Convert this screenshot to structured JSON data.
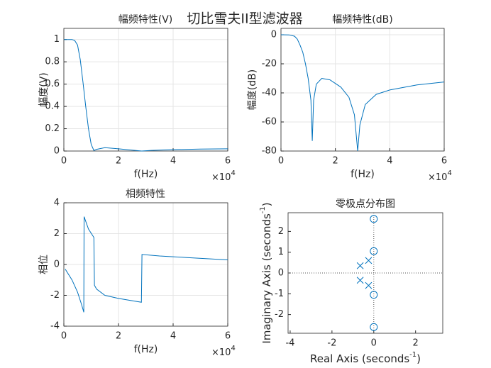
{
  "suptitle": "切比雪夫II型滤波器",
  "chart_data": [
    {
      "type": "line",
      "title": "幅频特性(V)",
      "xlabel": "f(Hz)",
      "ylabel": "幅度(V)",
      "x_multiplier": "×10",
      "x_multiplier_power": "4",
      "color": "#0072bd",
      "grid": true,
      "xlim": [
        0,
        6
      ],
      "xticks": [
        0,
        2,
        4,
        6
      ],
      "ylim": [
        0,
        1.1
      ],
      "yticks": [
        0,
        0.2,
        0.4,
        0.6,
        0.8,
        1
      ],
      "x": [
        0,
        0.3,
        0.4,
        0.5,
        0.6,
        0.7,
        0.8,
        0.9,
        1.0,
        1.1,
        1.2,
        1.5,
        2.0,
        2.5,
        2.85,
        3.2,
        4,
        5,
        6
      ],
      "values": [
        1,
        1,
        0.99,
        0.95,
        0.82,
        0.62,
        0.4,
        0.2,
        0.06,
        0.005,
        0.015,
        0.03,
        0.02,
        0.008,
        0,
        0.006,
        0.013,
        0.017,
        0.02
      ]
    },
    {
      "type": "line",
      "title": "幅频特性(dB)",
      "xlabel": "f(Hz)",
      "ylabel": "幅度(dB)",
      "x_multiplier": "×10",
      "x_multiplier_power": "4",
      "color": "#0072bd",
      "grid": true,
      "xlim": [
        0,
        6
      ],
      "xticks": [
        0,
        2,
        4,
        6
      ],
      "ylim": [
        -80,
        4.4
      ],
      "yticks": [
        -80,
        -60,
        -40,
        -20,
        0
      ],
      "x": [
        0,
        0.3,
        0.5,
        0.6,
        0.7,
        0.8,
        0.9,
        1.0,
        1.1,
        1.15,
        1.2,
        1.3,
        1.5,
        1.8,
        2.2,
        2.5,
        2.7,
        2.82,
        2.9,
        3.1,
        3.5,
        4,
        5,
        6
      ],
      "values": [
        0,
        -0.1,
        -1,
        -3,
        -7,
        -12,
        -20,
        -30,
        -45,
        -73,
        -45,
        -34,
        -30,
        -31,
        -36,
        -43,
        -55,
        -80,
        -62,
        -48,
        -41,
        -38,
        -34.5,
        -32.5
      ]
    },
    {
      "type": "line",
      "title": "相频特性",
      "xlabel": "f(Hz)",
      "ylabel": "相位",
      "x_multiplier": "×10",
      "x_multiplier_power": "4",
      "color": "#0072bd",
      "grid": true,
      "xlim": [
        0,
        6
      ],
      "xticks": [
        0,
        2,
        4,
        6
      ],
      "ylim": [
        -4,
        4
      ],
      "yticks": [
        -4,
        -2,
        0,
        2,
        4
      ],
      "x": [
        0.05,
        0.3,
        0.5,
        0.65,
        0.73,
        0.74,
        0.9,
        1.1,
        1.12,
        1.2,
        1.5,
        2,
        2.5,
        2.84,
        2.86,
        3.5,
        4.5,
        6
      ],
      "values": [
        -0.3,
        -1,
        -1.8,
        -2.6,
        -3.1,
        3.1,
        2.3,
        1.75,
        -1.35,
        -1.6,
        -2,
        -2.2,
        -2.35,
        -2.45,
        0.65,
        0.55,
        0.45,
        0.3
      ]
    },
    {
      "type": "pole-zero",
      "title": "零极点分布图",
      "xlabel_parts": [
        "Real Axis (seconds",
        "-1",
        ")"
      ],
      "ylabel_parts": [
        "Imaginary Axis (seconds",
        "-1",
        ")"
      ],
      "color": "#0072bd",
      "grid": false,
      "xlim": [
        -4.1,
        3.3
      ],
      "xticks": [
        -4,
        -2,
        0,
        2
      ],
      "ylim": [
        -2.9,
        2.9
      ],
      "yticks": [
        -2,
        -1,
        0,
        1,
        2
      ],
      "zeros": {
        "x": [
          0,
          0,
          0,
          0
        ],
        "y": [
          2.6,
          1.05,
          -1.05,
          -2.6
        ]
      },
      "poles": {
        "x": [
          -0.65,
          -0.25,
          -0.25,
          -0.65
        ],
        "y": [
          0.35,
          0.6,
          -0.6,
          -0.35
        ]
      }
    }
  ]
}
